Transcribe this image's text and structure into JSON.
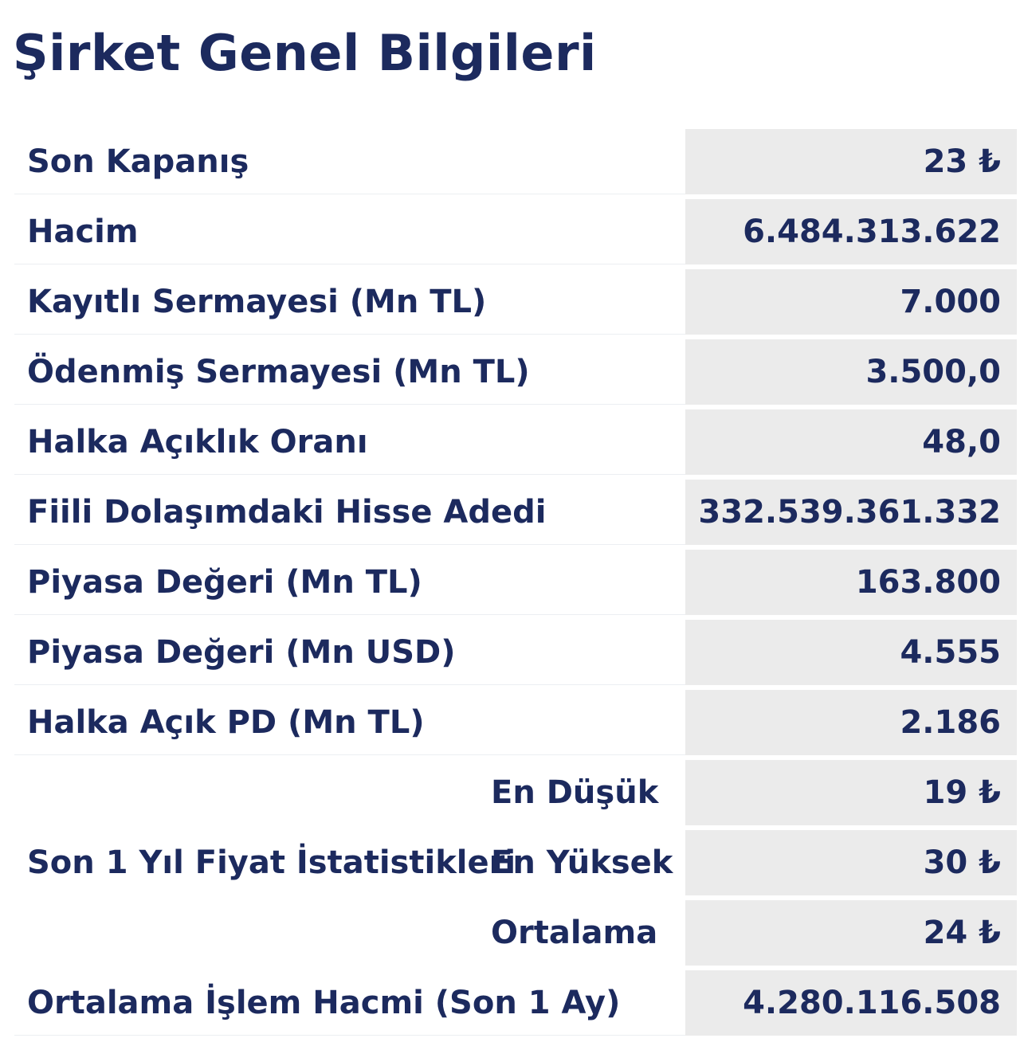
{
  "title": "Şirket Genel Bilgileri",
  "rows": [
    {
      "label": "Son Kapanış",
      "value": "23 ₺"
    },
    {
      "label": "Hacim",
      "value": "6.484.313.622"
    },
    {
      "label": "Kayıtlı Sermayesi (Mn TL)",
      "value": "7.000"
    },
    {
      "label": "Ödenmiş Sermayesi (Mn TL)",
      "value": "3.500,0"
    },
    {
      "label": "Halka Açıklık Oranı",
      "value": "48,0"
    },
    {
      "label": "Fiili Dolaşımdaki Hisse Adedi",
      "value": "332.539.361.332"
    },
    {
      "label": "Piyasa Değeri (Mn TL)",
      "value": "163.800"
    },
    {
      "label": "Piyasa Değeri (Mn USD)",
      "value": "4.555"
    },
    {
      "label": "Halka Açık PD (Mn TL)",
      "value": "2.186"
    }
  ],
  "price_stats": {
    "label": "Son 1 Yıl Fiyat İstatistikleri",
    "items": [
      {
        "label": "En Düşük",
        "value": "19 ₺"
      },
      {
        "label": "En Yüksek",
        "value": "30 ₺"
      },
      {
        "label": "Ortalama",
        "value": "24 ₺"
      }
    ]
  },
  "avg_volume": {
    "label": "Ortalama İşlem Hacmi (Son 1 Ay)",
    "value": "4.280.116.508"
  }
}
